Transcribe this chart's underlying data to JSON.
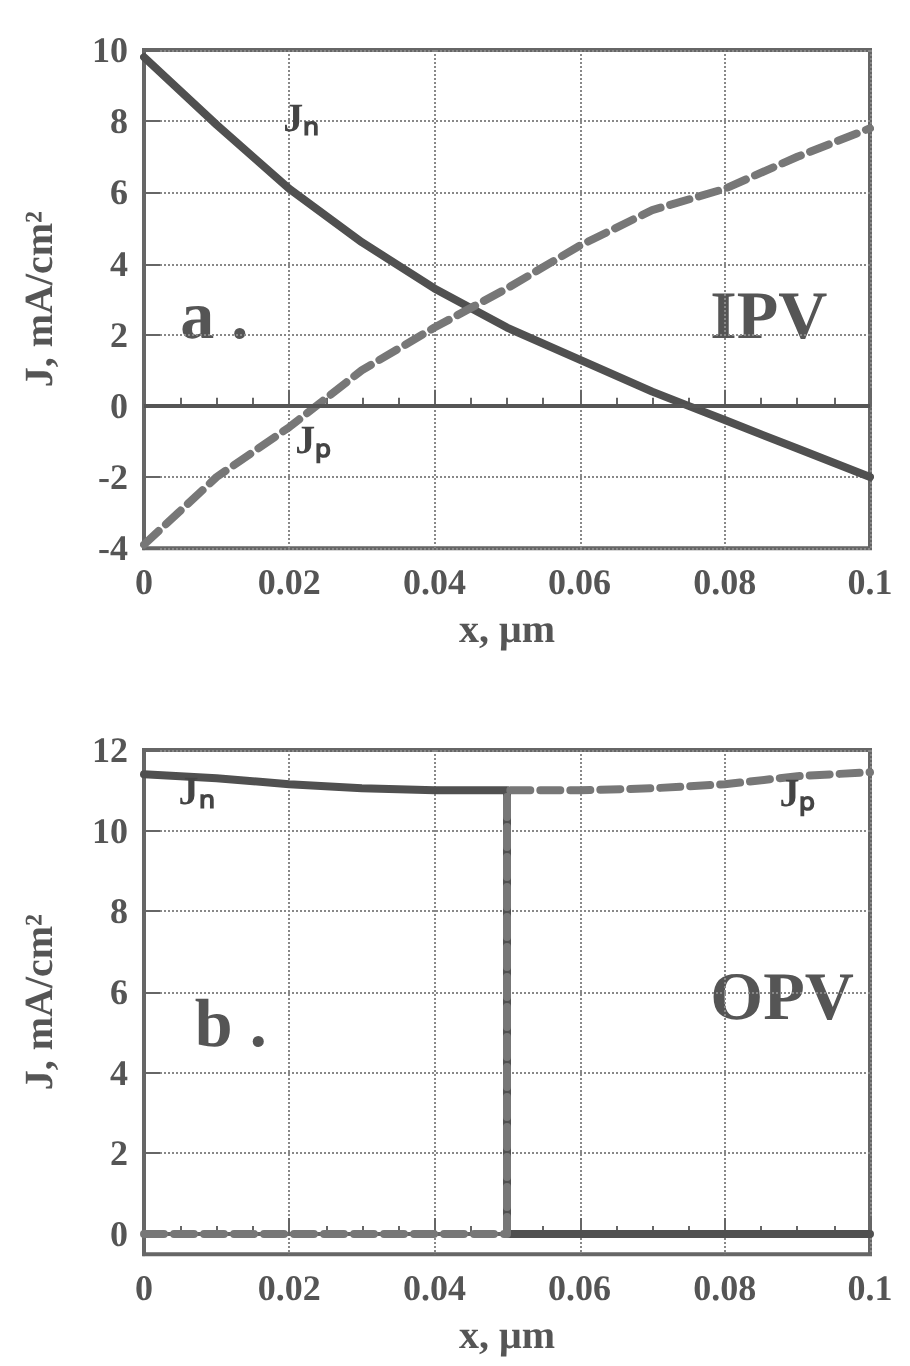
{
  "chart_data": [
    {
      "type": "line",
      "xlabel": "x, μm",
      "ylabel": "J, mA/cm²",
      "annotations": [
        "a .",
        "IPV"
      ],
      "xlim": [
        0,
        0.1
      ],
      "xticks": [
        0,
        0.02,
        0.04,
        0.06,
        0.08,
        0.1
      ],
      "ylim": [
        -4,
        10
      ],
      "yticks": [
        -4,
        -2,
        0,
        2,
        4,
        6,
        8,
        10
      ],
      "grid": true,
      "marker": "none",
      "ref_lines": [
        {
          "axis": "y",
          "value": 0,
          "color": "#555555",
          "line_style": "solid"
        }
      ],
      "series": [
        {
          "name": "Jₙ",
          "color": "#505050",
          "line_style": "solid",
          "x": [
            0,
            0.01,
            0.02,
            0.03,
            0.04,
            0.05,
            0.06,
            0.07,
            0.075,
            0.08,
            0.09,
            0.1
          ],
          "values": [
            9.8,
            7.9,
            6.1,
            4.6,
            3.3,
            2.2,
            1.3,
            0.4,
            0,
            -0.4,
            -1.2,
            -2.0
          ]
        },
        {
          "name": "Jₚ",
          "color": "#777777",
          "line_style": "dashed",
          "x": [
            0,
            0.01,
            0.02,
            0.025,
            0.03,
            0.04,
            0.05,
            0.06,
            0.07,
            0.08,
            0.09,
            0.1
          ],
          "values": [
            -3.9,
            -2.0,
            -0.6,
            0.2,
            1.0,
            2.2,
            3.3,
            4.5,
            5.5,
            6.1,
            7.0,
            7.8
          ]
        }
      ]
    },
    {
      "type": "line",
      "xlabel": "x, μm",
      "ylabel": "J, mA/cm²",
      "annotations": [
        "b .",
        "OPV"
      ],
      "xlim": [
        0,
        0.1
      ],
      "xticks": [
        0,
        0.02,
        0.04,
        0.06,
        0.08,
        0.1
      ],
      "ylim": [
        -0.5,
        12
      ],
      "yticks": [
        0,
        2,
        4,
        6,
        8,
        10,
        12
      ],
      "grid": true,
      "marker": "none",
      "series": [
        {
          "name": "Jₙ",
          "color": "#505050",
          "line_style": "solid",
          "x": [
            0,
            0.01,
            0.02,
            0.03,
            0.04,
            0.05,
            0.05,
            0.06,
            0.08,
            0.1
          ],
          "values": [
            11.4,
            11.3,
            11.15,
            11.05,
            11.0,
            11.0,
            0,
            0,
            0,
            0
          ]
        },
        {
          "name": "Jₚ",
          "color": "#777777",
          "line_style": "dashed",
          "x": [
            0,
            0.02,
            0.04,
            0.05,
            0.05,
            0.06,
            0.07,
            0.08,
            0.09,
            0.1
          ],
          "values": [
            0,
            0,
            0,
            0,
            11.0,
            11.0,
            11.05,
            11.15,
            11.35,
            11.45
          ]
        }
      ]
    }
  ]
}
